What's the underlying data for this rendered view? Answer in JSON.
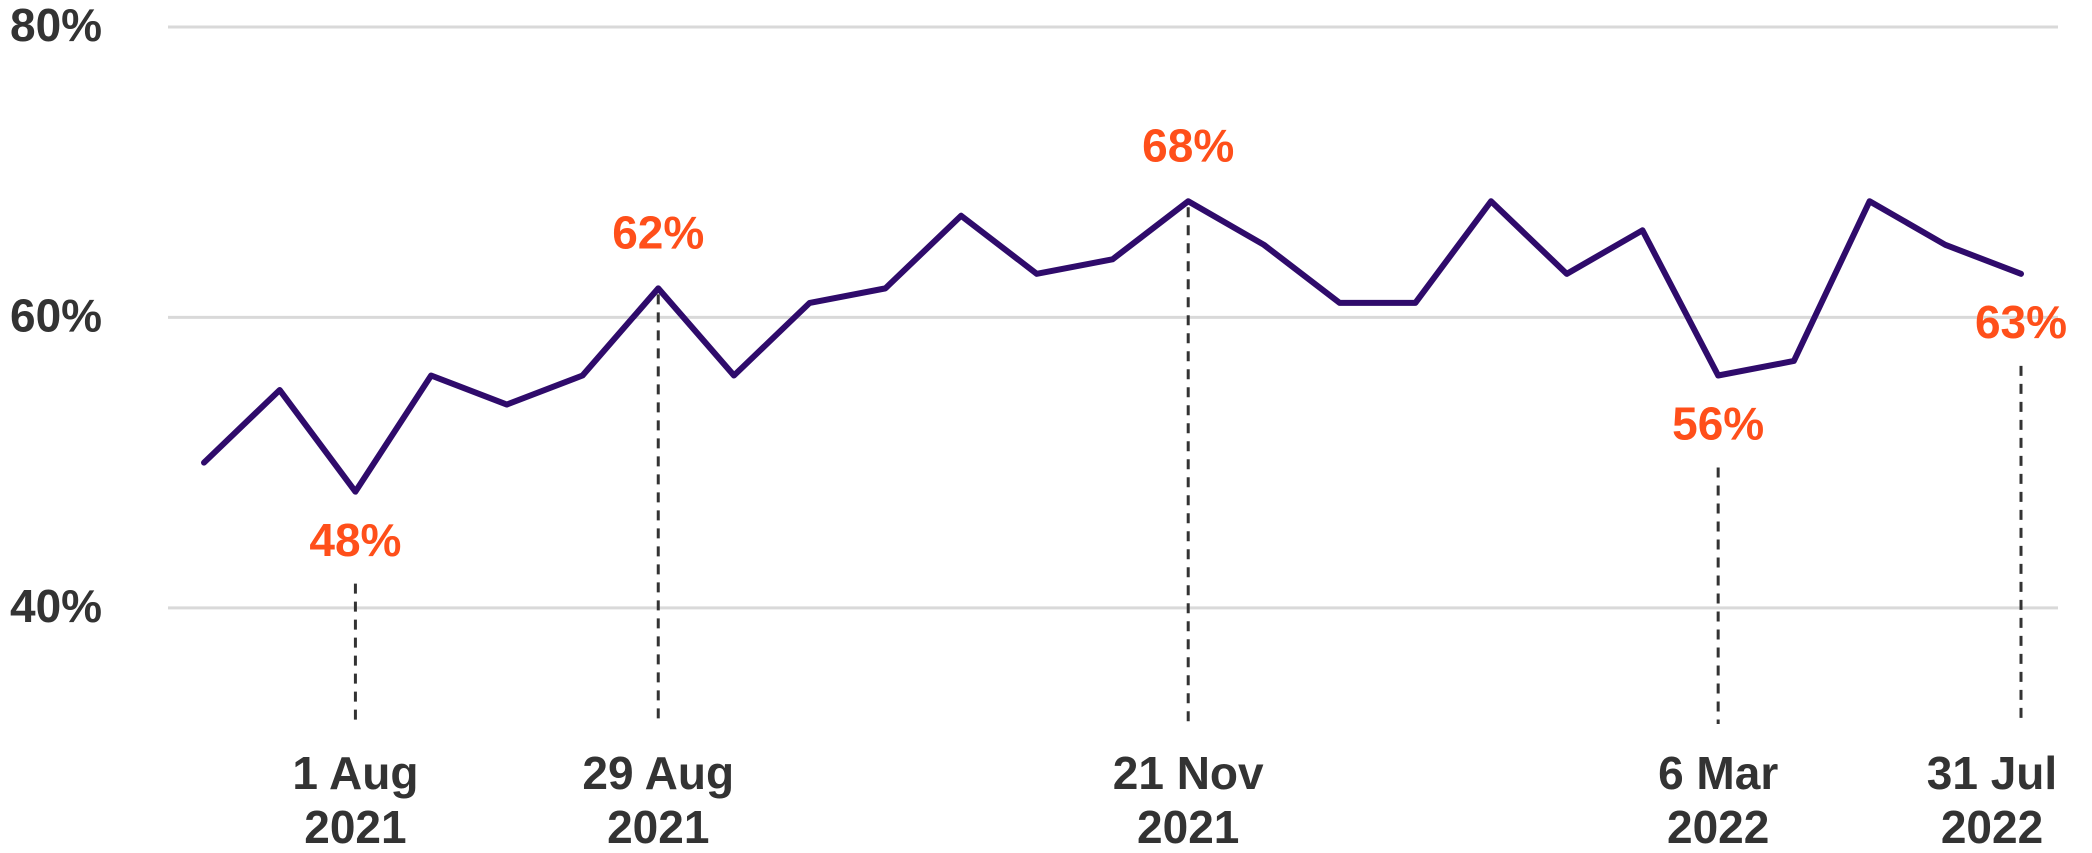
{
  "chart_data": {
    "type": "line",
    "categories": [
      null,
      null,
      "1 Aug 2021",
      null,
      null,
      null,
      "29 Aug 2021",
      null,
      null,
      null,
      null,
      null,
      null,
      "21 Nov 2021",
      null,
      null,
      null,
      null,
      null,
      null,
      "6 Mar 2022",
      null,
      null,
      null,
      "31 Jul 2022"
    ],
    "series": [
      {
        "color": "#2f0b6b",
        "values": [
          50,
          55,
          48,
          56,
          54,
          56,
          62,
          56,
          61,
          62,
          67,
          63,
          64,
          68,
          65,
          61,
          61,
          68,
          63,
          66,
          56,
          57,
          68,
          65,
          63
        ],
        "value_labels": [
          null,
          null,
          "48%",
          null,
          null,
          null,
          "62%",
          null,
          null,
          null,
          null,
          null,
          null,
          "68%",
          null,
          null,
          null,
          null,
          null,
          null,
          "56%",
          null,
          null,
          null,
          "63%"
        ]
      }
    ],
    "label_color": "#ff4f1a",
    "ylim": [
      32,
      80
    ],
    "yticks": [
      {
        "value": 40,
        "label": "40%"
      },
      {
        "value": 60,
        "label": "60%"
      },
      {
        "value": 80,
        "label": "80%"
      }
    ],
    "grid": true
  }
}
